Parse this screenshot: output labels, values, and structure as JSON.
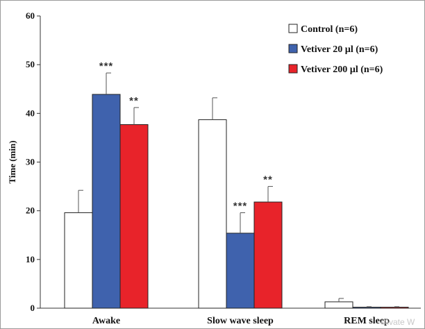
{
  "chart_data": {
    "type": "bar",
    "ylabel": "Time (min)",
    "ylim": [
      0,
      60
    ],
    "yticks": [
      "0",
      "10",
      "20",
      "30",
      "40",
      "50",
      "60"
    ],
    "ytick_values": [
      0,
      10,
      20,
      30,
      40,
      50,
      60
    ],
    "categories": [
      "Awake",
      "Slow wave sleep",
      "REM sleep"
    ],
    "legend_position": "top-right",
    "grid": false,
    "series": [
      {
        "name": "Control (n=6)",
        "color": "#ffffff",
        "values": [
          19.6,
          38.7,
          1.3
        ],
        "errors": [
          4.6,
          4.5,
          0.7
        ],
        "significance": [
          "",
          "",
          ""
        ]
      },
      {
        "name": "Vetiver 20 µl (n=6)",
        "color": "#3f62ad",
        "values": [
          43.9,
          15.4,
          0.2
        ],
        "errors": [
          4.4,
          4.2,
          0.1
        ],
        "significance": [
          "***",
          "***",
          ""
        ]
      },
      {
        "name": "Vetiver 200 µl (n=6)",
        "color": "#e8232a",
        "values": [
          37.7,
          21.8,
          0.2
        ],
        "errors": [
          3.5,
          3.2,
          0.1
        ],
        "significance": [
          "**",
          "**",
          ""
        ]
      }
    ]
  },
  "watermark": "ctivate W"
}
